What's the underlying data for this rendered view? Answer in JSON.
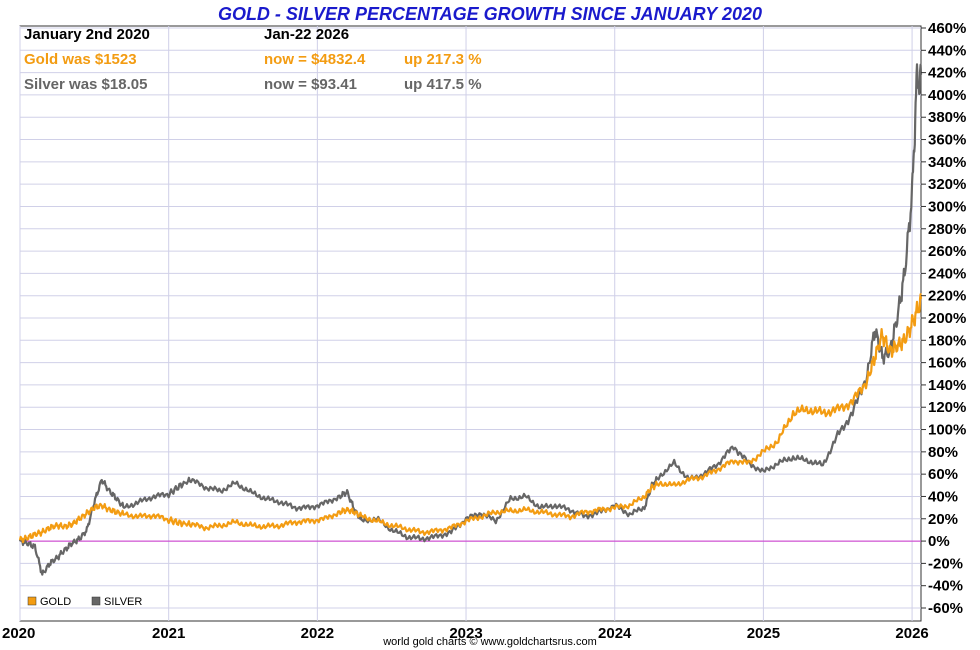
{
  "chart_data": {
    "type": "line",
    "title": "GOLD - SILVER PERCENTAGE GROWTH SINCE JANUARY 2020",
    "xlabel": "",
    "ylabel": "",
    "x_ticks": [
      "2020",
      "2021",
      "2022",
      "2023",
      "2024",
      "2025",
      "2026"
    ],
    "y_ticks": [
      "460%",
      "440%",
      "420%",
      "400%",
      "380%",
      "360%",
      "340%",
      "320%",
      "300%",
      "280%",
      "260%",
      "240%",
      "220%",
      "200%",
      "180%",
      "160%",
      "140%",
      "120%",
      "100%",
      "80%",
      "60%",
      "40%",
      "20%",
      "0%",
      "-20%",
      "-40%",
      "-60%"
    ],
    "ylim": [
      -60,
      460
    ],
    "xlim": [
      2020.0,
      2026.06
    ],
    "grid": true,
    "legend_position": "bottom-left",
    "colors": {
      "gold": "#f39c12",
      "silver": "#666666",
      "zero_line": "#cc33cc",
      "grid": "#d0d0e8",
      "title": "#1a1acc"
    },
    "series": [
      {
        "name": "GOLD",
        "color": "#f39c12",
        "x": [
          2020.0,
          2020.05,
          2020.1,
          2020.15,
          2020.2,
          2020.25,
          2020.3,
          2020.35,
          2020.4,
          2020.45,
          2020.5,
          2020.55,
          2020.6,
          2020.65,
          2020.7,
          2020.8,
          2020.9,
          2021.0,
          2021.08,
          2021.15,
          2021.25,
          2021.35,
          2021.45,
          2021.55,
          2021.65,
          2021.75,
          2021.85,
          2021.95,
          2022.05,
          2022.15,
          2022.2,
          2022.25,
          2022.3,
          2022.4,
          2022.5,
          2022.6,
          2022.7,
          2022.8,
          2022.9,
          2023.0,
          2023.1,
          2023.2,
          2023.3,
          2023.4,
          2023.5,
          2023.6,
          2023.7,
          2023.8,
          2023.9,
          2024.0,
          2024.1,
          2024.2,
          2024.25,
          2024.3,
          2024.4,
          2024.5,
          2024.6,
          2024.7,
          2024.8,
          2024.9,
          2025.0,
          2025.1,
          2025.2,
          2025.3,
          2025.4,
          2025.5,
          2025.6,
          2025.7,
          2025.75,
          2025.8,
          2025.85,
          2025.9,
          2025.95,
          2026.0,
          2026.03,
          2026.06
        ],
        "y": [
          1,
          3,
          6,
          8,
          12,
          14,
          13,
          15,
          20,
          25,
          30,
          32,
          28,
          26,
          24,
          22,
          23,
          19,
          16,
          15,
          12,
          14,
          17,
          14,
          13,
          14,
          17,
          18,
          20,
          26,
          28,
          26,
          22,
          18,
          14,
          11,
          8,
          9,
          12,
          18,
          22,
          26,
          27,
          28,
          26,
          24,
          22,
          26,
          28,
          30,
          32,
          40,
          48,
          52,
          50,
          55,
          58,
          65,
          72,
          70,
          80,
          90,
          115,
          118,
          115,
          118,
          125,
          145,
          165,
          185,
          170,
          175,
          180,
          195,
          205,
          217
        ]
      },
      {
        "name": "SILVER",
        "color": "#666666",
        "x": [
          2020.0,
          2020.05,
          2020.1,
          2020.15,
          2020.2,
          2020.25,
          2020.3,
          2020.35,
          2020.4,
          2020.45,
          2020.5,
          2020.55,
          2020.6,
          2020.65,
          2020.7,
          2020.8,
          2020.9,
          2021.0,
          2021.08,
          2021.15,
          2021.25,
          2021.35,
          2021.45,
          2021.55,
          2021.65,
          2021.75,
          2021.85,
          2021.95,
          2022.05,
          2022.15,
          2022.2,
          2022.25,
          2022.3,
          2022.4,
          2022.5,
          2022.6,
          2022.7,
          2022.8,
          2022.9,
          2023.0,
          2023.1,
          2023.2,
          2023.3,
          2023.4,
          2023.5,
          2023.6,
          2023.7,
          2023.8,
          2023.9,
          2024.0,
          2024.1,
          2024.2,
          2024.25,
          2024.3,
          2024.4,
          2024.5,
          2024.6,
          2024.7,
          2024.8,
          2024.9,
          2025.0,
          2025.1,
          2025.2,
          2025.3,
          2025.4,
          2025.5,
          2025.6,
          2025.7,
          2025.75,
          2025.8,
          2025.85,
          2025.9,
          2025.95,
          2026.0,
          2026.03,
          2026.06
        ],
        "y": [
          0,
          -2,
          -5,
          -30,
          -20,
          -15,
          -8,
          -2,
          2,
          10,
          35,
          55,
          45,
          38,
          30,
          35,
          40,
          42,
          50,
          55,
          48,
          45,
          52,
          44,
          38,
          35,
          30,
          30,
          34,
          40,
          44,
          28,
          18,
          20,
          10,
          4,
          2,
          4,
          8,
          20,
          25,
          18,
          38,
          40,
          30,
          32,
          28,
          22,
          26,
          32,
          24,
          30,
          50,
          58,
          70,
          55,
          60,
          70,
          85,
          70,
          62,
          70,
          75,
          72,
          68,
          95,
          115,
          150,
          190,
          165,
          170,
          200,
          240,
          310,
          410,
          418
        ]
      }
    ]
  },
  "header": {
    "start_label": "January 2nd 2020",
    "end_label": "Jan-22  2026",
    "gold_was": "Gold was $1523",
    "gold_now": "now = $4832.4",
    "gold_up": "up 217.3 %",
    "silver_was": "Silver was $18.05",
    "silver_now": "now = $93.41",
    "silver_up": "up 417.5 %"
  },
  "legend": {
    "gold_label": "GOLD",
    "silver_label": "SILVER"
  },
  "credit": "world gold charts © www.goldchartsrus.com"
}
